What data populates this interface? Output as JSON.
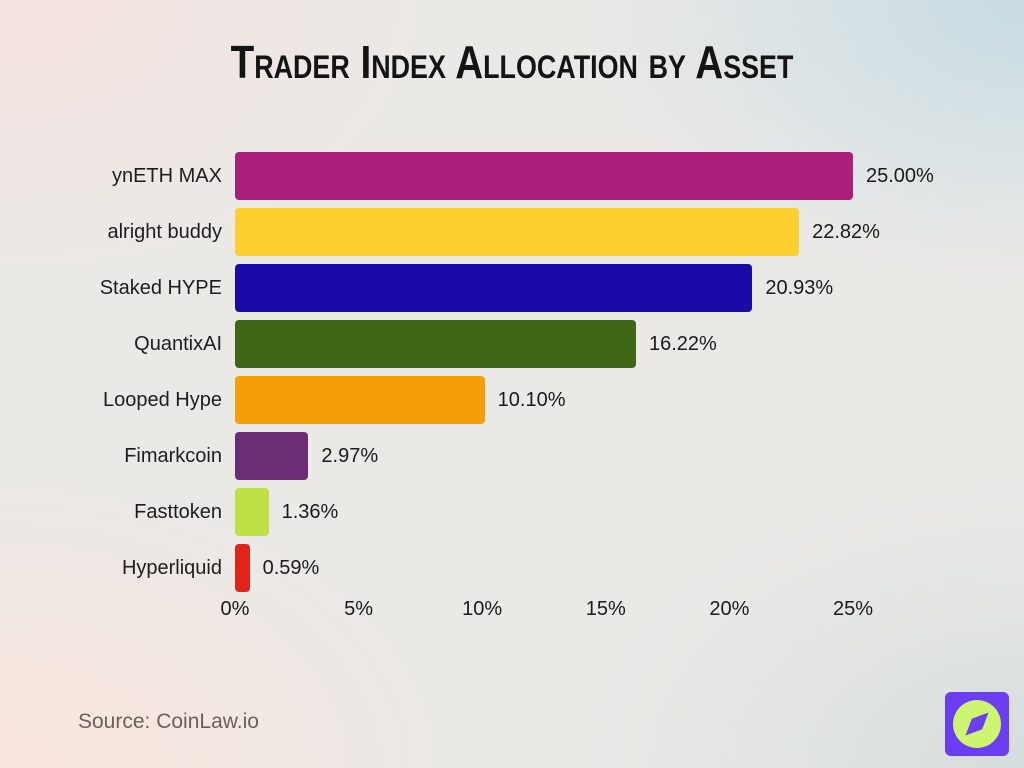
{
  "header": {
    "title": "Trader Index Allocation by Asset"
  },
  "footer": {
    "source_text": "Source: CoinLaw.io"
  },
  "logo": {
    "name": "coinlaw-logo",
    "square_color": "#6C3EF2",
    "circle_color": "#CDF56F"
  },
  "background": {
    "top_left": "#F6E3E0",
    "top_right": "#C6DBE4",
    "bottom_left": "#FCE6DD",
    "bottom_right": "#D3DDDD"
  },
  "chart_data": {
    "type": "bar",
    "orientation": "horizontal",
    "title": "Trader Index Allocation by Asset",
    "categories": [
      "ynETH MAX",
      "alright buddy",
      "Staked HYPE",
      "QuantixAI",
      "Looped Hype",
      "Fimarkcoin",
      "Fasttoken",
      "Hyperliquid"
    ],
    "values": [
      25.0,
      22.82,
      20.93,
      16.22,
      10.1,
      2.97,
      1.36,
      0.59
    ],
    "value_labels": [
      "25.00%",
      "22.82%",
      "20.93%",
      "16.22%",
      "10.10%",
      "2.97%",
      "1.36%",
      "0.59%"
    ],
    "colors": [
      "#AB1F7B",
      "#FCD12F",
      "#1C09A9",
      "#3F6617",
      "#F59E07",
      "#6B2D74",
      "#BFE045",
      "#E0241A"
    ],
    "x_ticks": [
      "0%",
      "5%",
      "10%",
      "15%",
      "20%",
      "25%"
    ],
    "x_tick_values": [
      0,
      5,
      10,
      15,
      20,
      25
    ],
    "xlim": [
      0,
      25
    ],
    "xlabel": "",
    "ylabel": "",
    "grid": false,
    "legend": false
  }
}
